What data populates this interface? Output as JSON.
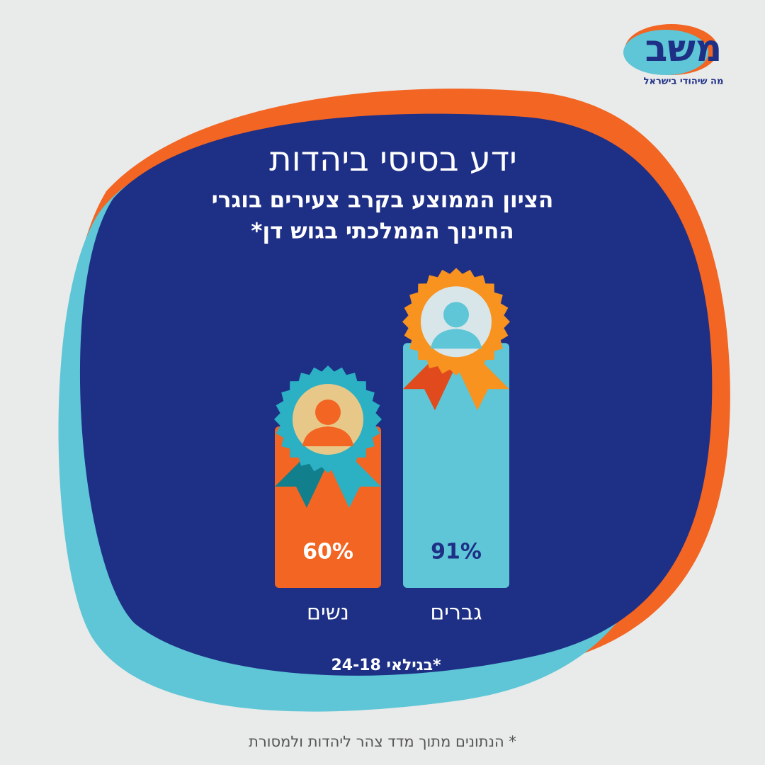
{
  "chart_data": {
    "type": "bar",
    "title": "ידע בסיסי ביהדות",
    "subtitle": [
      "הציון הממוצע בקרב צעירים בוגרי",
      "החינוך הממלכתי בגוש דן*"
    ],
    "categories": [
      "גברים",
      "נשים"
    ],
    "values": [
      91,
      60
    ],
    "value_labels": [
      "91%",
      "60%"
    ],
    "colors": [
      "#5ec6d6",
      "#f26522"
    ],
    "label_colors": [
      "#1e2f86",
      "#ffffff"
    ],
    "note": "*בגילאי 24-18"
  },
  "logo": {
    "text": "משב",
    "tagline": "מה שיהודי בישראל"
  },
  "footer": "* הנתונים מתוך מדד צהר ליהדות ולמסורת"
}
